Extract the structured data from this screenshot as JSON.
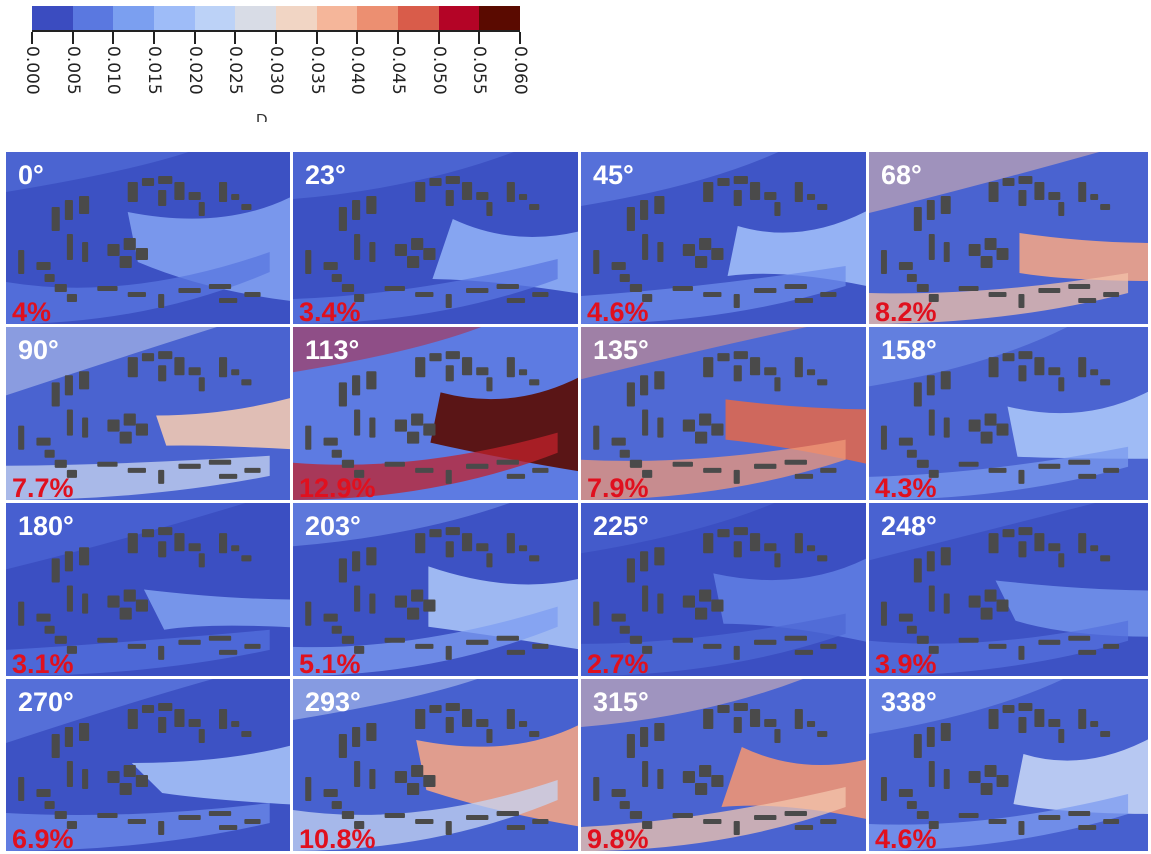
{
  "colorbar": {
    "colors": [
      "#3b4cc0",
      "#5a78e0",
      "#7b9ff0",
      "#9ebcf8",
      "#bcd2f7",
      "#d8dce6",
      "#f1d5c4",
      "#f5b69a",
      "#ec8f71",
      "#d95c4a",
      "#b40426",
      "#5a0a00"
    ],
    "labels": [
      "0.000",
      "0.005",
      "0.010",
      "0.015",
      "0.020",
      "0.025",
      "0.030",
      "0.035",
      "0.040",
      "0.045",
      "0.050",
      "0.055",
      "0.060"
    ],
    "title": "D"
  },
  "panels": [
    {
      "angle": "0°",
      "percent": "4%",
      "base": "#3c51c3",
      "plumes": [
        "#7f9ef1",
        "#5a77e0"
      ]
    },
    {
      "angle": "23°",
      "percent": "3.4%",
      "base": "#3c51c3",
      "plumes": [
        "#8eaef6",
        "#5a77e0"
      ]
    },
    {
      "angle": "45°",
      "percent": "4.6%",
      "base": "#3f55c6",
      "plumes": [
        "#9ebcf8",
        "#6d8ceb"
      ]
    },
    {
      "angle": "68°",
      "percent": "8.2%",
      "base": "#4a63d0",
      "plumes": [
        "#f0a387",
        "#f3c1a8"
      ]
    },
    {
      "angle": "90°",
      "percent": "7.7%",
      "base": "#4a63d0",
      "plumes": [
        "#f1c8b1",
        "#c9d6f0"
      ]
    },
    {
      "angle": "113°",
      "percent": "12.9%",
      "base": "#5d7be2",
      "plumes": [
        "#5a0a00",
        "#c1222b"
      ]
    },
    {
      "angle": "135°",
      "percent": "7.9%",
      "base": "#4f69d4",
      "plumes": [
        "#dd6850",
        "#ef9878"
      ]
    },
    {
      "angle": "158°",
      "percent": "4.3%",
      "base": "#4b64d1",
      "plumes": [
        "#a9c4f8",
        "#7a9aee"
      ]
    },
    {
      "angle": "180°",
      "percent": "3.1%",
      "base": "#3b4fc2",
      "plumes": [
        "#7d9cee",
        "#5470de"
      ]
    },
    {
      "angle": "203°",
      "percent": "5.1%",
      "base": "#3d52c4",
      "plumes": [
        "#a8c3f7",
        "#7e9ef1"
      ]
    },
    {
      "angle": "225°",
      "percent": "2.7%",
      "base": "#3b4fc2",
      "plumes": [
        "#5f7ce2",
        "#4e68d4"
      ]
    },
    {
      "angle": "248°",
      "percent": "3.9%",
      "base": "#3d52c4",
      "plumes": [
        "#7090ea",
        "#5572dd"
      ]
    },
    {
      "angle": "270°",
      "percent": "6.9%",
      "base": "#3d52c4",
      "plumes": [
        "#a4c0f7",
        "#6d8ceb"
      ]
    },
    {
      "angle": "293°",
      "percent": "10.8%",
      "base": "#4761cf",
      "plumes": [
        "#f1a486",
        "#c6d5f3"
      ]
    },
    {
      "angle": "315°",
      "percent": "9.8%",
      "base": "#4a63d0",
      "plumes": [
        "#ee9474",
        "#f3c6ad"
      ]
    },
    {
      "angle": "338°",
      "percent": "4.6%",
      "base": "#4760cf",
      "plumes": [
        "#c3d4f5",
        "#7d9cf0"
      ]
    }
  ]
}
